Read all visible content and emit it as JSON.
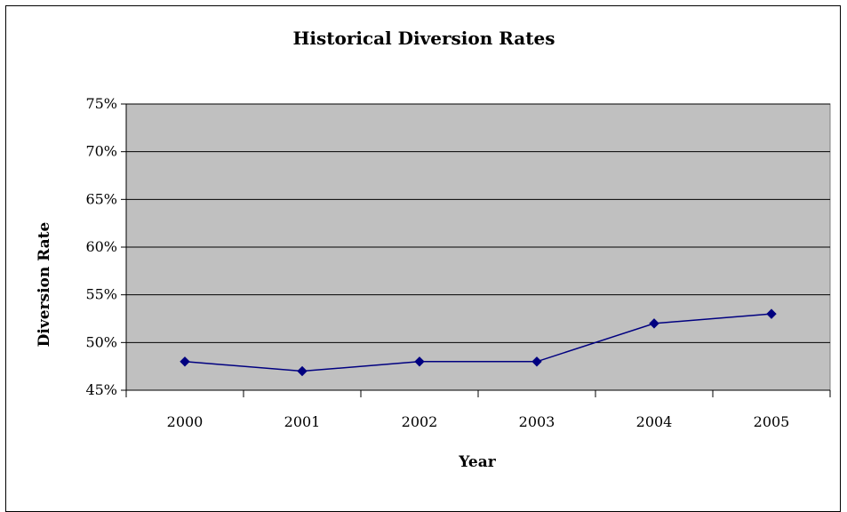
{
  "chart_data": {
    "type": "line",
    "title": "Historical Diversion Rates",
    "xlabel": "Year",
    "ylabel": "Diversion Rate",
    "categories": [
      "2000",
      "2001",
      "2002",
      "2003",
      "2004",
      "2005"
    ],
    "series": [
      {
        "values": [
          0.48,
          0.47,
          0.48,
          0.48,
          0.52,
          0.53
        ]
      }
    ],
    "ylim": [
      0.45,
      0.75
    ],
    "yticks": [
      "45%",
      "50%",
      "55%",
      "60%",
      "65%",
      "70%",
      "75%"
    ],
    "grid": true,
    "legend": "none",
    "colors": {
      "plot_bg": "#c0c0c0",
      "line": "#000080",
      "marker": "#000080",
      "grid": "#000000"
    },
    "marker": "diamond"
  }
}
